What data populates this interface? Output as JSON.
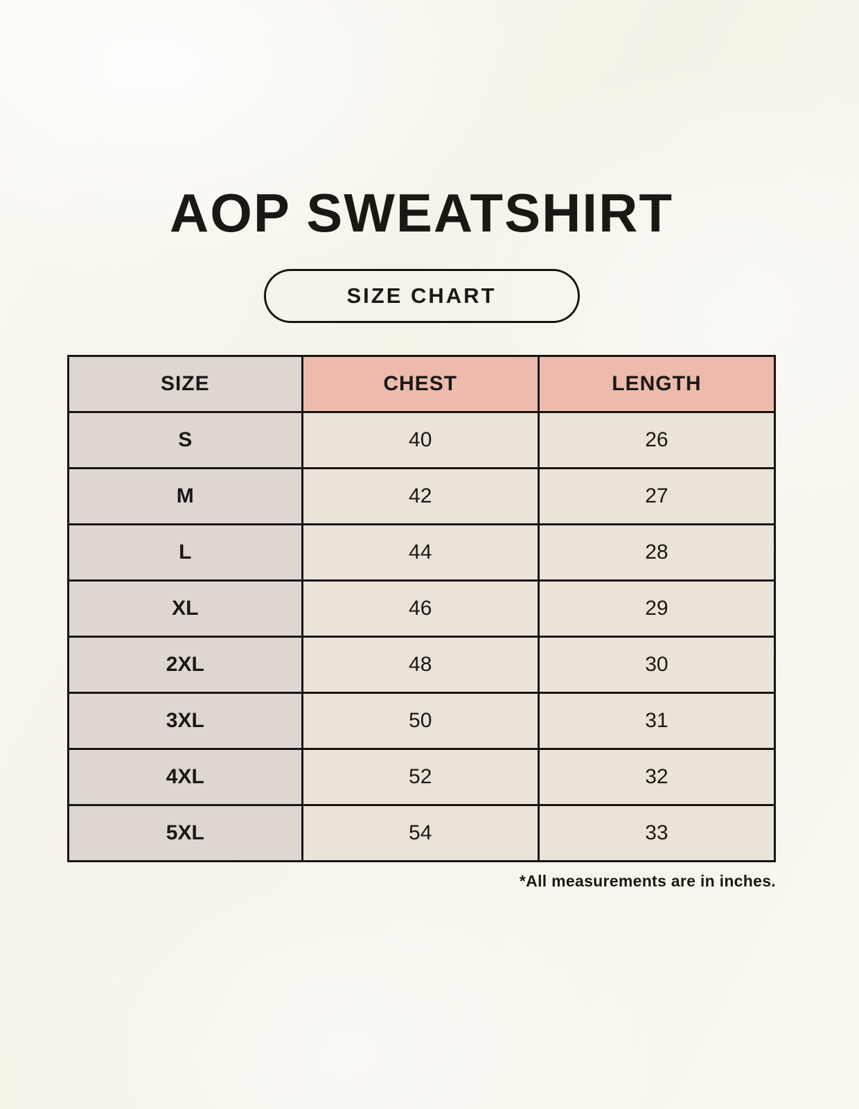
{
  "page": {
    "title": "AOP SWEATSHIRT",
    "badge_label": "SIZE CHART",
    "footnote": "*All measurements are in inches."
  },
  "chart_data": {
    "type": "table",
    "title": "AOP SWEATSHIRT",
    "subtitle": "SIZE CHART",
    "columns": [
      "SIZE",
      "CHEST",
      "LENGTH"
    ],
    "rows": [
      [
        "S",
        40,
        26
      ],
      [
        "M",
        42,
        27
      ],
      [
        "L",
        44,
        28
      ],
      [
        "XL",
        46,
        29
      ],
      [
        "2XL",
        48,
        30
      ],
      [
        "3XL",
        50,
        31
      ],
      [
        "4XL",
        52,
        32
      ],
      [
        "5XL",
        54,
        33
      ]
    ],
    "footnote": "*All measurements are in inches.",
    "units": "inches"
  },
  "colors": {
    "background": "#f9f6ee",
    "size_column_bg": "#ded7d1",
    "header_accent_bg": "#edbbac",
    "cell_bg": "#e9e3d8",
    "border": "#171411",
    "text": "#1b1814"
  }
}
